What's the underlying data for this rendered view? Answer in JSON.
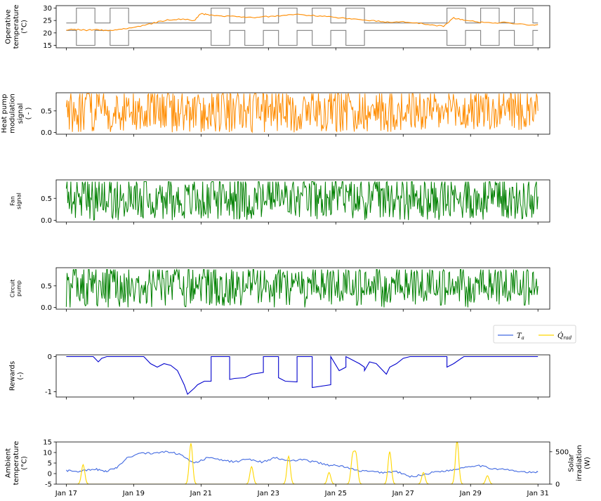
{
  "chart_data": [
    {
      "type": "line",
      "ylabel": [
        "Operative",
        "temperature",
        "(°C)"
      ],
      "ylim": [
        14,
        31
      ],
      "yticks": [
        "15",
        "20",
        "25",
        "30"
      ],
      "xlim_days": [
        16.7,
        31.35
      ],
      "series": [
        {
          "color": "#808080",
          "kind": "comfort-upper",
          "x": [
            17.0,
            17.3,
            17.3,
            17.85,
            17.85,
            18.3,
            18.3,
            18.85,
            18.85,
            21.3,
            21.3,
            21.85,
            21.85,
            22.3,
            22.3,
            22.85,
            22.85,
            23.3,
            23.3,
            23.85,
            23.85,
            24.3,
            24.3,
            24.85,
            24.85,
            25.3,
            25.3,
            25.85,
            25.85,
            28.3,
            28.3,
            28.85,
            28.85,
            29.3,
            29.3,
            29.85,
            29.85,
            30.3,
            30.3,
            30.85,
            30.85,
            31.0
          ],
          "y": [
            24,
            24,
            30,
            30,
            24,
            24,
            30,
            30,
            24,
            24,
            30,
            30,
            24,
            24,
            30,
            30,
            24,
            24,
            30,
            30,
            24,
            24,
            30,
            30,
            24,
            24,
            30,
            30,
            24,
            24,
            30,
            30,
            24,
            24,
            30,
            30,
            24,
            24,
            30,
            30,
            24,
            24
          ]
        },
        {
          "color": "#808080",
          "kind": "comfort-lower",
          "x": [
            17.0,
            17.3,
            17.3,
            17.85,
            17.85,
            18.3,
            18.3,
            18.85,
            18.85,
            21.3,
            21.3,
            21.85,
            21.85,
            22.3,
            22.3,
            22.85,
            22.85,
            23.3,
            23.3,
            23.85,
            23.85,
            24.3,
            24.3,
            24.85,
            24.85,
            25.3,
            25.3,
            25.85,
            25.85,
            28.3,
            28.3,
            28.85,
            28.85,
            29.3,
            29.3,
            29.85,
            29.85,
            30.3,
            30.3,
            30.85,
            30.85,
            31.0
          ],
          "y": [
            21,
            21,
            15,
            15,
            21,
            21,
            15,
            15,
            21,
            21,
            15,
            15,
            21,
            21,
            15,
            15,
            21,
            21,
            15,
            15,
            21,
            21,
            15,
            15,
            21,
            21,
            15,
            15,
            21,
            21,
            15,
            15,
            21,
            21,
            15,
            15,
            21,
            21,
            15,
            15,
            21,
            21
          ]
        },
        {
          "color": "#ff8c00",
          "kind": "operative",
          "x": [
            17.0,
            17.3,
            17.6,
            17.9,
            18.2,
            18.5,
            18.8,
            19.2,
            19.6,
            20.0,
            20.4,
            20.8,
            21.0,
            21.2,
            21.5,
            21.8,
            22.2,
            22.6,
            23.0,
            23.4,
            23.8,
            24.2,
            24.6,
            25.0,
            25.4,
            25.8,
            26.2,
            26.6,
            27.0,
            27.4,
            27.8,
            28.2,
            28.5,
            28.8,
            29.2,
            29.6,
            30.0,
            30.4,
            30.8,
            31.0
          ],
          "y": [
            21.2,
            21.4,
            21.0,
            21.5,
            20.8,
            21.3,
            21.8,
            22.8,
            24.0,
            25.3,
            25.6,
            25.0,
            27.8,
            27.3,
            26.9,
            26.7,
            26.5,
            26.2,
            26.6,
            27.0,
            27.4,
            27.1,
            26.8,
            26.2,
            25.7,
            25.4,
            24.8,
            24.2,
            24.5,
            24.0,
            23.4,
            22.6,
            26.0,
            25.2,
            24.4,
            24.0,
            24.2,
            23.6,
            23.2,
            23.4
          ]
        }
      ]
    },
    {
      "type": "line",
      "ylabel": [
        "Heat pump",
        "modulation",
        "signal",
        "( - )"
      ],
      "ylim": [
        -0.04,
        0.92
      ],
      "yticks": [
        "0.0",
        "0.5"
      ],
      "xlim_days": [
        16.7,
        31.35
      ],
      "series": [
        {
          "color": "#ff8c00",
          "kind": "noise",
          "min": 0.0,
          "max": 0.9,
          "samples": 620,
          "seed": 11
        }
      ]
    },
    {
      "type": "line",
      "ylabel": [
        "Fan",
        "signal"
      ],
      "ylim": [
        -0.04,
        0.92
      ],
      "yticks": [
        "0.0",
        "0.5"
      ],
      "xlim_days": [
        16.7,
        31.35
      ],
      "series": [
        {
          "color": "#008000",
          "kind": "noise",
          "min": 0.0,
          "max": 0.88,
          "samples": 620,
          "seed": 23
        }
      ]
    },
    {
      "type": "line",
      "ylabel": [
        "Circuit",
        "pump"
      ],
      "ylim": [
        -0.04,
        0.92
      ],
      "yticks": [
        "0.0",
        "0.5"
      ],
      "xlim_days": [
        16.7,
        31.35
      ],
      "series": [
        {
          "color": "#008000",
          "kind": "noise",
          "min": 0.0,
          "max": 0.88,
          "samples": 620,
          "seed": 37
        }
      ]
    },
    {
      "type": "line",
      "ylabel": [
        "Rewards",
        "(-)"
      ],
      "ylim": [
        -1.15,
        0.05
      ],
      "yticks": [
        "0",
        "-1"
      ],
      "xlim_days": [
        16.7,
        31.35
      ],
      "series": [
        {
          "color": "#0000cd",
          "kind": "rewards",
          "x": [
            17.0,
            17.8,
            17.95,
            18.05,
            18.2,
            18.3,
            19.3,
            19.5,
            19.7,
            19.9,
            20.1,
            20.3,
            20.5,
            20.6,
            20.8,
            20.9,
            21.1,
            21.3,
            21.3,
            21.85,
            21.85,
            22.0,
            22.3,
            22.5,
            22.85,
            22.85,
            23.3,
            23.3,
            23.5,
            23.85,
            23.85,
            24.2,
            24.3,
            24.3,
            24.85,
            24.85,
            25.1,
            25.3,
            25.3,
            25.7,
            25.85,
            25.85,
            26.0,
            26.2,
            26.5,
            26.6,
            26.8,
            27.0,
            27.2,
            28.3,
            28.3,
            28.5,
            28.8,
            31.0
          ],
          "y": [
            0.0,
            0.0,
            -0.15,
            -0.05,
            0.0,
            0.0,
            0.0,
            -0.2,
            -0.3,
            -0.2,
            -0.25,
            -0.4,
            -0.8,
            -1.07,
            -0.9,
            -0.8,
            -0.7,
            -0.7,
            0.0,
            0.0,
            -0.65,
            -0.62,
            -0.6,
            -0.5,
            -0.45,
            0.0,
            0.0,
            -0.6,
            -0.7,
            -0.72,
            0.0,
            0.0,
            0.0,
            -0.88,
            -0.8,
            0.0,
            -0.4,
            -0.3,
            0.0,
            -0.2,
            -0.3,
            -0.4,
            -0.15,
            -0.2,
            -0.5,
            -0.3,
            -0.2,
            -0.05,
            0.0,
            0.0,
            -0.3,
            -0.2,
            0.0,
            0.0
          ]
        }
      ]
    },
    {
      "type": "line",
      "ylabel": [
        "Ambient",
        "temperature",
        "(°C)"
      ],
      "ylim": [
        -5,
        15
      ],
      "yticks": [
        "-5",
        "0",
        "5",
        "10",
        "15"
      ],
      "y2label": [
        "Solar",
        "irradiation",
        "(W)"
      ],
      "y2lim": [
        0,
        650
      ],
      "y2ticks": [
        "0",
        "500"
      ],
      "xlim_days": [
        16.7,
        31.35
      ],
      "xticks": [
        "Jan 17",
        "Jan 19",
        "Jan 21",
        "Jan 23",
        "Jan 25",
        "Jan 27",
        "Jan 29",
        "Jan 31"
      ],
      "legend": {
        "placement": "above-right",
        "entries": [
          {
            "label": "T",
            "sub": "a",
            "color": "#4169e1"
          },
          {
            "label": "Q̇",
            "sub": "rad",
            "color": "#ffd700"
          }
        ]
      },
      "series": [
        {
          "color": "#4169e1",
          "axis": "left",
          "kind": "ambient",
          "x": [
            17.0,
            17.3,
            17.6,
            17.9,
            18.2,
            18.5,
            18.8,
            19.2,
            19.6,
            20.0,
            20.4,
            20.8,
            21.2,
            21.6,
            22.0,
            22.4,
            22.8,
            23.2,
            23.6,
            24.0,
            24.4,
            24.8,
            25.2,
            25.6,
            26.0,
            26.4,
            26.8,
            27.2,
            27.6,
            28.0,
            28.4,
            28.8,
            29.2,
            29.6,
            30.0,
            30.4,
            30.8,
            31.0
          ],
          "y": [
            1.5,
            1.0,
            1.5,
            2.0,
            1.0,
            3.0,
            7.5,
            9.8,
            9.5,
            10.5,
            9.0,
            5.0,
            7.5,
            6.5,
            5.5,
            7.0,
            5.5,
            7.5,
            6.0,
            6.5,
            5.5,
            4.0,
            3.5,
            1.5,
            1.0,
            0.5,
            1.0,
            -1.5,
            -0.5,
            1.0,
            1.5,
            3.0,
            4.0,
            2.5,
            2.0,
            1.0,
            0.5,
            0.8
          ]
        },
        {
          "color": "#ffd700",
          "axis": "right",
          "kind": "solar",
          "peaks": [
            [
              17.5,
              300
            ],
            [
              20.7,
              630
            ],
            [
              22.5,
              270
            ],
            [
              23.6,
              430
            ],
            [
              24.8,
              180
            ],
            [
              25.5,
              420
            ],
            [
              25.6,
              430
            ],
            [
              26.6,
              500
            ],
            [
              27.6,
              180
            ],
            [
              28.6,
              670
            ],
            [
              29.5,
              130
            ]
          ]
        }
      ]
    }
  ]
}
